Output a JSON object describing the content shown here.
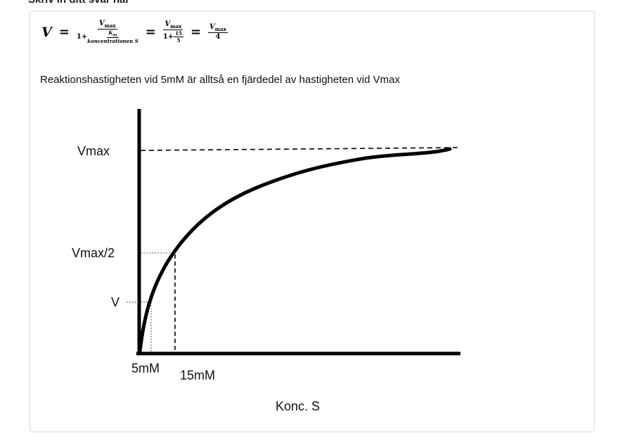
{
  "header": {
    "title": "Skriv in ditt svar här"
  },
  "formula": {
    "lhs": "V",
    "eq": "=",
    "vmax": "V",
    "vmax_sub": "max",
    "one_plus": "1+",
    "km": "K",
    "km_sub": "m",
    "conc": "koncentrationen S",
    "num15": "15",
    "den5": "5",
    "den4": "4"
  },
  "answer_text": "Reaktionshastigheten vid 5mM är alltså en fjärdedel av hastigheten vid Vmax",
  "graph": {
    "y_labels": [
      "Vmax",
      "Vmax/2",
      "V"
    ],
    "x_labels": [
      "5mM",
      "15mM"
    ],
    "x_title": "Konc. S"
  }
}
